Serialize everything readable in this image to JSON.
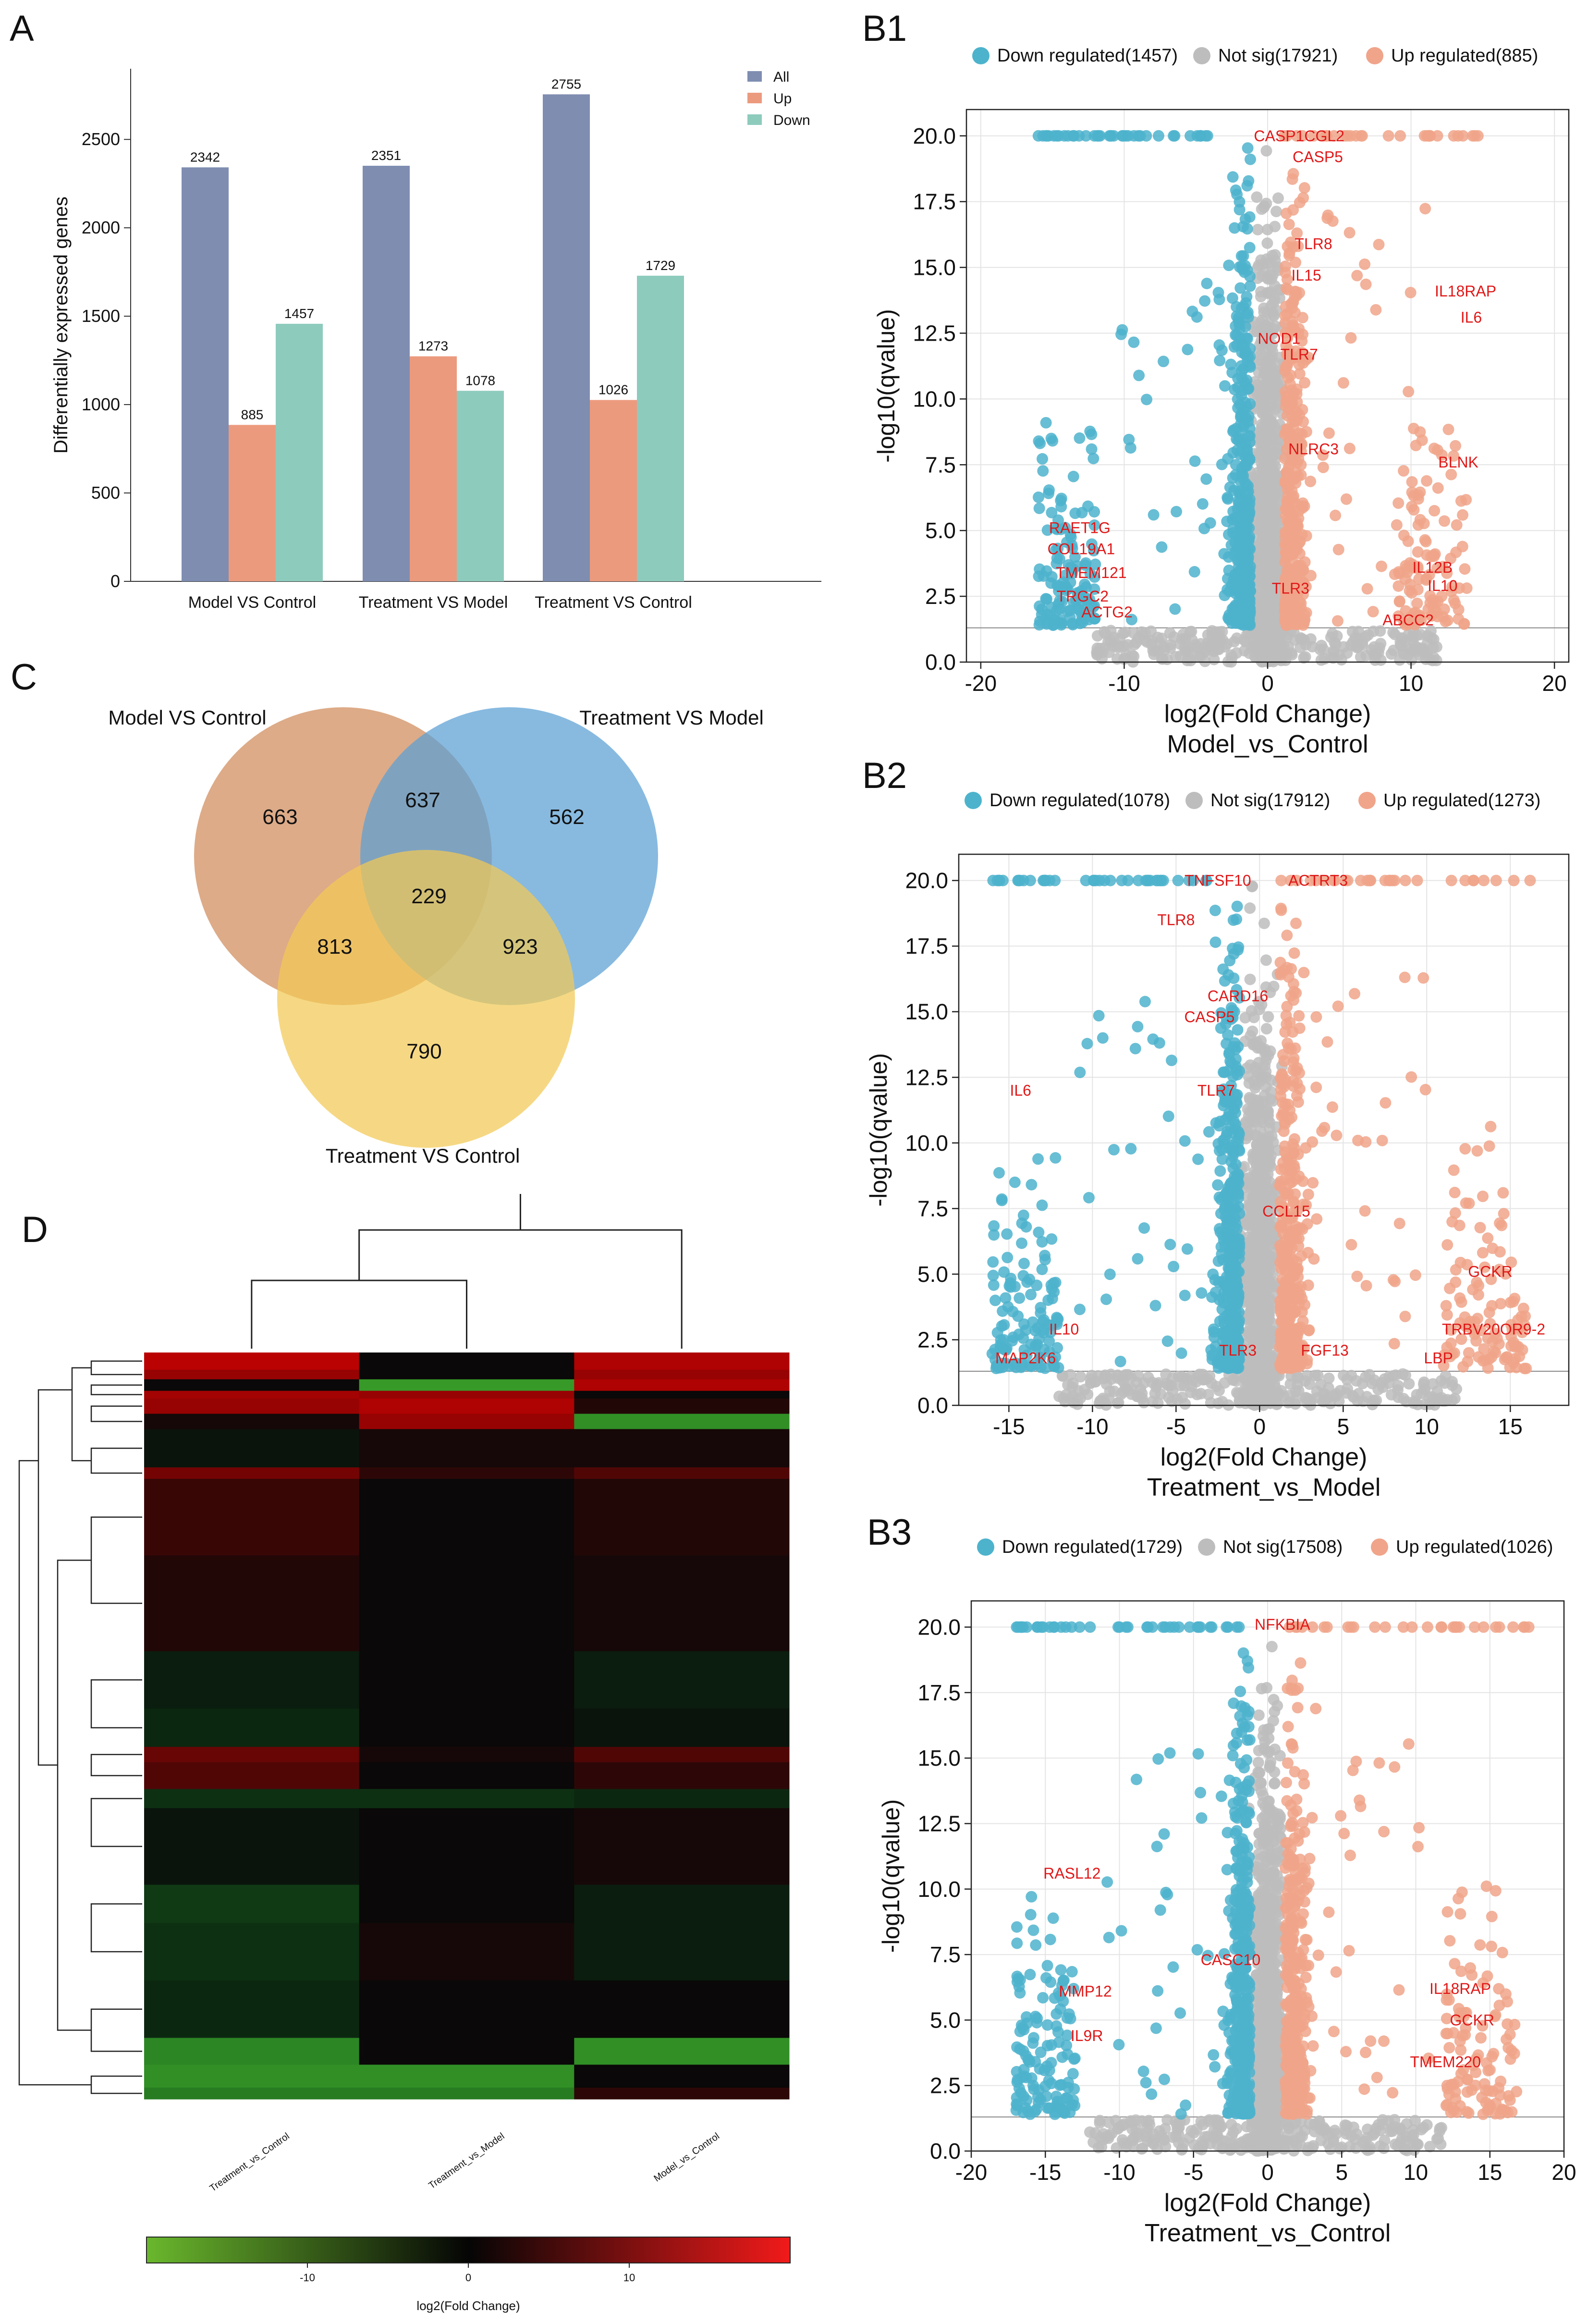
{
  "panels": {
    "A": "A",
    "B1": "B1",
    "B2": "B2",
    "B3": "B3",
    "C": "C",
    "D": "D"
  },
  "colors": {
    "all": "#7f8db1",
    "up": "#ec9a7e",
    "down": "#8dcbbd",
    "vdown": "#4db3cc",
    "vns": "#bdbdbd",
    "vup": "#f0a48a",
    "gene_label": "#e01818",
    "venn_model": "#d08a5a",
    "venn_treat_model": "#5a9fd4",
    "venn_treat_control": "#f3c954"
  },
  "chart_data": [
    {
      "id": "A",
      "type": "bar",
      "title": "",
      "ylabel": "Differentially expressed genes",
      "xlabel": "",
      "ylim": [
        0,
        2900
      ],
      "yticks": [
        0,
        500,
        1000,
        1500,
        2000,
        2500
      ],
      "categories": [
        "Model VS Control",
        "Treatment VS Model",
        "Treatment VS Control"
      ],
      "series": [
        {
          "name": "All",
          "values": [
            2342,
            2351,
            2755
          ]
        },
        {
          "name": "Up",
          "values": [
            885,
            1273,
            1026
          ]
        },
        {
          "name": "Down",
          "values": [
            1457,
            1078,
            1729
          ]
        }
      ],
      "legend": "top-right"
    },
    {
      "id": "B1",
      "type": "scatter",
      "subtitle": "Model_vs_Control",
      "xlabel": "log2(Fold Change)",
      "ylabel": "-log10(qvalue)",
      "xlim": [
        -21,
        21
      ],
      "ylim": [
        0,
        21
      ],
      "xticks": [
        -20,
        -10,
        0,
        10,
        20
      ],
      "yticks": [
        0.0,
        2.5,
        5.0,
        7.5,
        10.0,
        12.5,
        15.0,
        17.5,
        20.0
      ],
      "legend": [
        {
          "label": "Down regulated(1457)",
          "key": "vdown"
        },
        {
          "label": "Not sig(17921)",
          "key": "vns"
        },
        {
          "label": "Up regulated(885)",
          "key": "vup"
        }
      ],
      "down_x": [
        -16,
        -4
      ],
      "up_x": [
        1,
        15
      ],
      "genes": [
        {
          "name": "CASP1CGL2",
          "x": 2.2,
          "y": 20.0
        },
        {
          "name": "CASP5",
          "x": 3.5,
          "y": 19.2
        },
        {
          "name": "TLR8",
          "x": 3.2,
          "y": 15.9
        },
        {
          "name": "IL15",
          "x": 2.7,
          "y": 14.7
        },
        {
          "name": "IL18RAP",
          "x": 13.8,
          "y": 14.1
        },
        {
          "name": "IL6",
          "x": 14.2,
          "y": 13.1
        },
        {
          "name": "NOD1",
          "x": 0.8,
          "y": 12.3
        },
        {
          "name": "TLR7",
          "x": 2.2,
          "y": 11.7
        },
        {
          "name": "NLRC3",
          "x": 3.2,
          "y": 8.1
        },
        {
          "name": "BLNK",
          "x": 13.3,
          "y": 7.6
        },
        {
          "name": "RAET1G",
          "x": -13.1,
          "y": 5.1
        },
        {
          "name": "COL19A1",
          "x": -13.0,
          "y": 4.3
        },
        {
          "name": "IL12B",
          "x": 11.5,
          "y": 3.6
        },
        {
          "name": "TMEM121",
          "x": -12.3,
          "y": 3.4
        },
        {
          "name": "IL10",
          "x": 12.2,
          "y": 2.9
        },
        {
          "name": "TLR3",
          "x": 1.6,
          "y": 2.8
        },
        {
          "name": "TRGC2",
          "x": -12.9,
          "y": 2.5
        },
        {
          "name": "ACTG2",
          "x": -11.2,
          "y": 1.9
        },
        {
          "name": "ABCC2",
          "x": 9.8,
          "y": 1.6
        }
      ]
    },
    {
      "id": "B2",
      "type": "scatter",
      "subtitle": "Treatment_vs_Model",
      "xlabel": "log2(Fold Change)",
      "ylabel": "-log10(qvalue)",
      "xlim": [
        -18,
        18.5
      ],
      "ylim": [
        0,
        21
      ],
      "xticks": [
        -15,
        -10,
        -5,
        0,
        5,
        10,
        15
      ],
      "yticks": [
        0.0,
        2.5,
        5.0,
        7.5,
        10.0,
        12.5,
        15.0,
        17.5,
        20.0
      ],
      "legend": [
        {
          "label": "Down regulated(1078)",
          "key": "vdown"
        },
        {
          "label": "Not sig(17912)",
          "key": "vns"
        },
        {
          "label": "Up regulated(1273)",
          "key": "vup"
        }
      ],
      "down_x": [
        -16,
        -3
      ],
      "up_x": [
        1,
        17
      ],
      "genes": [
        {
          "name": "TNFSF10",
          "x": -2.5,
          "y": 20.0
        },
        {
          "name": "ACTRT3",
          "x": 3.5,
          "y": 20.0
        },
        {
          "name": "TLR8",
          "x": -5.0,
          "y": 18.5
        },
        {
          "name": "CARD16",
          "x": -1.3,
          "y": 15.6
        },
        {
          "name": "CASP5",
          "x": -3.0,
          "y": 14.8
        },
        {
          "name": "IL6",
          "x": -14.3,
          "y": 12.0
        },
        {
          "name": "TLR7",
          "x": -2.6,
          "y": 12.0
        },
        {
          "name": "CCL15",
          "x": 1.6,
          "y": 7.4
        },
        {
          "name": "GCKR",
          "x": 13.8,
          "y": 5.1
        },
        {
          "name": "IL10",
          "x": -11.7,
          "y": 2.9
        },
        {
          "name": "TRBV20OR9-2",
          "x": 14.0,
          "y": 2.9
        },
        {
          "name": "TLR3",
          "x": -1.3,
          "y": 2.1
        },
        {
          "name": "FGF13",
          "x": 3.9,
          "y": 2.1
        },
        {
          "name": "MAP2K6",
          "x": -14.0,
          "y": 1.8
        },
        {
          "name": "LBP",
          "x": 10.7,
          "y": 1.8
        }
      ]
    },
    {
      "id": "B3",
      "type": "scatter",
      "subtitle": "Treatment_vs_Control",
      "xlabel": "log2(Fold Change)",
      "ylabel": "-log10(qvalue)",
      "xlim": [
        -20,
        20
      ],
      "ylim": [
        0,
        21
      ],
      "xticks": [
        -20,
        -15,
        -10,
        -5,
        0,
        5,
        10,
        15,
        20
      ],
      "yticks": [
        0.0,
        2.5,
        5.0,
        7.5,
        10.0,
        12.5,
        15.0,
        17.5,
        20.0
      ],
      "legend": [
        {
          "label": "Down regulated(1729)",
          "key": "vdown"
        },
        {
          "label": "Not sig(17508)",
          "key": "vns"
        },
        {
          "label": "Up regulated(1026)",
          "key": "vup"
        }
      ],
      "down_x": [
        -17,
        -2
      ],
      "up_x": [
        1,
        18
      ],
      "genes": [
        {
          "name": "NFKBIA",
          "x": 1.0,
          "y": 20.1
        },
        {
          "name": "RASL12",
          "x": -13.2,
          "y": 10.6
        },
        {
          "name": "CASC10",
          "x": -2.5,
          "y": 7.3
        },
        {
          "name": "MMP12",
          "x": -12.3,
          "y": 6.1
        },
        {
          "name": "IL18RAP",
          "x": 13.0,
          "y": 6.2
        },
        {
          "name": "GCKR",
          "x": 13.8,
          "y": 5.0
        },
        {
          "name": "IL9R",
          "x": -12.2,
          "y": 4.4
        },
        {
          "name": "TMEM220",
          "x": 12.0,
          "y": 3.4
        }
      ]
    },
    {
      "id": "C",
      "type": "venn",
      "sets": [
        "Model VS Control",
        "Treatment VS Model",
        "Treatment VS Control"
      ],
      "regions": {
        "a_only": 663,
        "b_only": 562,
        "c_only": 790,
        "ab": 637,
        "ac": 813,
        "bc": 923,
        "abc": 229
      }
    },
    {
      "id": "D",
      "type": "heatmap",
      "columns": [
        "Treatment_vs_Control",
        "Treatment_vs_Model",
        "Model_vs_Control"
      ],
      "colorbar_label": "log2(Fold Change)",
      "colorbar_ticks": [
        -10,
        0,
        10
      ],
      "colorbar_range": [
        -20,
        20
      ],
      "row_blocks": [
        {
          "rows": 9,
          "values": [
            15,
            0,
            14
          ]
        },
        {
          "rows": 5,
          "values": [
            12,
            0,
            12
          ]
        },
        {
          "rows": 6,
          "values": [
            0,
            -15,
            14
          ]
        },
        {
          "rows": 4,
          "values": [
            13,
            12,
            0
          ]
        },
        {
          "rows": 8,
          "values": [
            12,
            14,
            2
          ]
        },
        {
          "rows": 8,
          "values": [
            1,
            12,
            -14
          ]
        },
        {
          "rows": 20,
          "values": [
            -1,
            1,
            1
          ]
        },
        {
          "rows": 6,
          "values": [
            9,
            3,
            6
          ]
        },
        {
          "rows": 40,
          "values": [
            4,
            0,
            2
          ]
        },
        {
          "rows": 50,
          "values": [
            2,
            0,
            1
          ]
        },
        {
          "rows": 30,
          "values": [
            -2,
            0,
            -2
          ]
        },
        {
          "rows": 20,
          "values": [
            -3,
            0,
            -1
          ]
        },
        {
          "rows": 8,
          "values": [
            8,
            1,
            6
          ]
        },
        {
          "rows": 14,
          "values": [
            6,
            0,
            3
          ]
        },
        {
          "rows": 10,
          "values": [
            -4,
            -4,
            -3
          ]
        },
        {
          "rows": 40,
          "values": [
            -1,
            0,
            1
          ]
        },
        {
          "rows": 20,
          "values": [
            -5,
            0,
            -2
          ]
        },
        {
          "rows": 30,
          "values": [
            -4,
            1,
            -2
          ]
        },
        {
          "rows": 30,
          "values": [
            -3,
            0,
            0
          ]
        },
        {
          "rows": 14,
          "values": [
            -13,
            0,
            -14
          ]
        },
        {
          "rows": 12,
          "values": [
            -14,
            -14,
            0
          ]
        },
        {
          "rows": 6,
          "values": [
            -12,
            -12,
            3
          ]
        }
      ]
    }
  ]
}
